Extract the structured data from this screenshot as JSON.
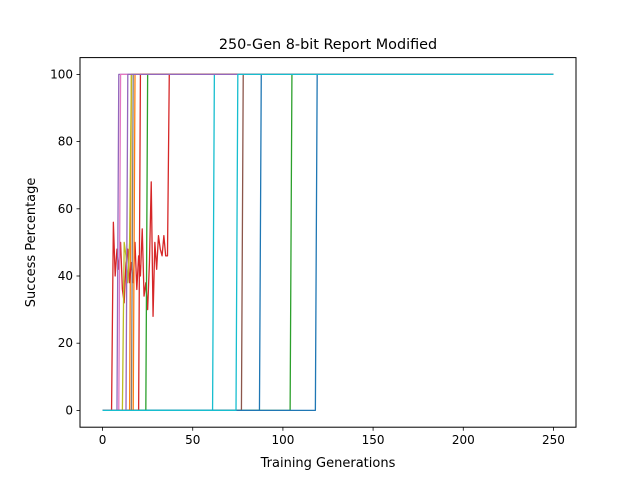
{
  "chart_data": {
    "type": "line",
    "title": "250-Gen 8-bit Report Modified",
    "xlabel": "Training Generations",
    "ylabel": "Success Percentage",
    "xlim": [
      -12.5,
      262.5
    ],
    "ylim": [
      -5,
      105
    ],
    "xticks": [
      0,
      50,
      100,
      150,
      200,
      250
    ],
    "yticks": [
      0,
      20,
      40,
      60,
      80,
      100
    ],
    "grid": false,
    "series": [
      {
        "color": "#1f77b4",
        "x": [
          0,
          87,
          88,
          250
        ],
        "y": [
          0,
          0,
          100,
          100
        ]
      },
      {
        "color": "#ff7f0e",
        "x": [
          0,
          15,
          16,
          250
        ],
        "y": [
          0,
          0,
          100,
          100
        ]
      },
      {
        "color": "#2ca02c",
        "x": [
          0,
          104,
          105,
          250
        ],
        "y": [
          0,
          0,
          100,
          100
        ]
      },
      {
        "color": "#d62728",
        "x": [
          0,
          5,
          6,
          7,
          8,
          9,
          10,
          11,
          12,
          13,
          14,
          15,
          16,
          17,
          18,
          19,
          20,
          21,
          22,
          23,
          24,
          25,
          26,
          27,
          28,
          29,
          30,
          31,
          32,
          33,
          34,
          35,
          36,
          37,
          250
        ],
        "y": [
          0,
          0,
          56,
          40,
          48,
          42,
          50,
          36,
          32,
          44,
          48,
          38,
          44,
          38,
          50,
          36,
          46,
          40,
          54,
          34,
          38,
          30,
          44,
          68,
          28,
          50,
          42,
          52,
          48,
          46,
          52,
          46,
          46,
          100,
          100
        ]
      },
      {
        "color": "#9467bd",
        "x": [
          0,
          8,
          9,
          250
        ],
        "y": [
          0,
          0,
          100,
          100
        ]
      },
      {
        "color": "#8c564b",
        "x": [
          0,
          77,
          78,
          250
        ],
        "y": [
          0,
          0,
          100,
          100
        ]
      },
      {
        "color": "#e377c2",
        "x": [
          0,
          9,
          10,
          250
        ],
        "y": [
          0,
          0,
          100,
          100
        ]
      },
      {
        "color": "#7f7f7f",
        "x": [
          0,
          16,
          17,
          250
        ],
        "y": [
          0,
          0,
          100,
          100
        ]
      },
      {
        "color": "#bcbd22",
        "x": [
          0,
          11,
          12,
          13,
          14,
          15,
          16,
          250
        ],
        "y": [
          0,
          0,
          50,
          46,
          38,
          50,
          100,
          100
        ]
      },
      {
        "color": "#17becf",
        "x": [
          0,
          61,
          62,
          250
        ],
        "y": [
          0,
          0,
          100,
          100
        ]
      },
      {
        "color": "#1f77b4",
        "x": [
          0,
          118,
          119,
          250
        ],
        "y": [
          0,
          0,
          100,
          100
        ]
      },
      {
        "color": "#ff7f0e",
        "x": [
          0,
          17,
          18,
          250
        ],
        "y": [
          0,
          0,
          100,
          100
        ]
      },
      {
        "color": "#2ca02c",
        "x": [
          0,
          24,
          25,
          250
        ],
        "y": [
          0,
          0,
          100,
          100
        ]
      },
      {
        "color": "#d62728",
        "x": [
          0,
          20,
          21,
          250
        ],
        "y": [
          0,
          0,
          100,
          100
        ]
      },
      {
        "color": "#9467bd",
        "x": [
          0,
          13,
          14,
          250
        ],
        "y": [
          0,
          0,
          100,
          100
        ]
      },
      {
        "color": "#17becf",
        "x": [
          0,
          74,
          75,
          250
        ],
        "y": [
          0,
          0,
          100,
          100
        ]
      }
    ]
  }
}
